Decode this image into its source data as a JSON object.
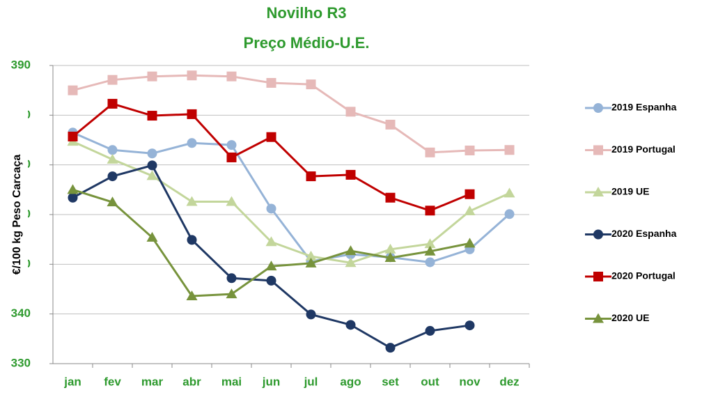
{
  "chart_data": {
    "type": "line",
    "title": "Novilho R3",
    "subtitle": "Preço Médio-U.E.",
    "y_label": "€/100 kg Peso Carcaça",
    "categories": [
      "jan",
      "fev",
      "mar",
      "abr",
      "mai",
      "jun",
      "jul",
      "ago",
      "set",
      "out",
      "nov",
      "dez"
    ],
    "ylim": [
      330,
      390
    ],
    "yticks": [
      330,
      340,
      350,
      360,
      370,
      380,
      390
    ],
    "grid": true,
    "legend": "right",
    "series": [
      {
        "name": "2019 Espanha",
        "color": "#95b3d7",
        "marker": "circle",
        "values": [
          376.5,
          373.0,
          372.3,
          374.4,
          374.0,
          361.2,
          350.6,
          352.0,
          351.4,
          350.4,
          353.0,
          360.1
        ]
      },
      {
        "name": "2019 Portugal",
        "color": "#e6b9b8",
        "marker": "square",
        "values": [
          385.0,
          387.1,
          387.8,
          388.0,
          387.8,
          386.5,
          386.2,
          380.7,
          378.1,
          372.5,
          372.9,
          373.0
        ]
      },
      {
        "name": "2019 UE",
        "color": "#c3d69b",
        "marker": "triangle",
        "values": [
          374.7,
          371.1,
          367.8,
          362.6,
          362.6,
          354.5,
          351.6,
          350.3,
          353.0,
          354.1,
          360.7,
          364.3
        ]
      },
      {
        "name": "2020 Espanha",
        "color": "#1f3864",
        "marker": "circle",
        "values": [
          363.4,
          367.7,
          369.9,
          354.9,
          347.2,
          346.7,
          339.9,
          337.8,
          333.2,
          336.6,
          337.7,
          null
        ]
      },
      {
        "name": "2020 Portugal",
        "color": "#c00000",
        "marker": "square",
        "values": [
          375.7,
          382.3,
          379.9,
          380.2,
          371.5,
          375.6,
          367.7,
          368.0,
          363.4,
          360.8,
          364.1,
          null
        ]
      },
      {
        "name": "2020 UE",
        "color": "#77933c",
        "marker": "triangle",
        "values": [
          365.0,
          362.5,
          355.4,
          343.6,
          344.0,
          349.6,
          350.2,
          352.7,
          351.3,
          352.6,
          354.2,
          null
        ]
      }
    ]
  }
}
